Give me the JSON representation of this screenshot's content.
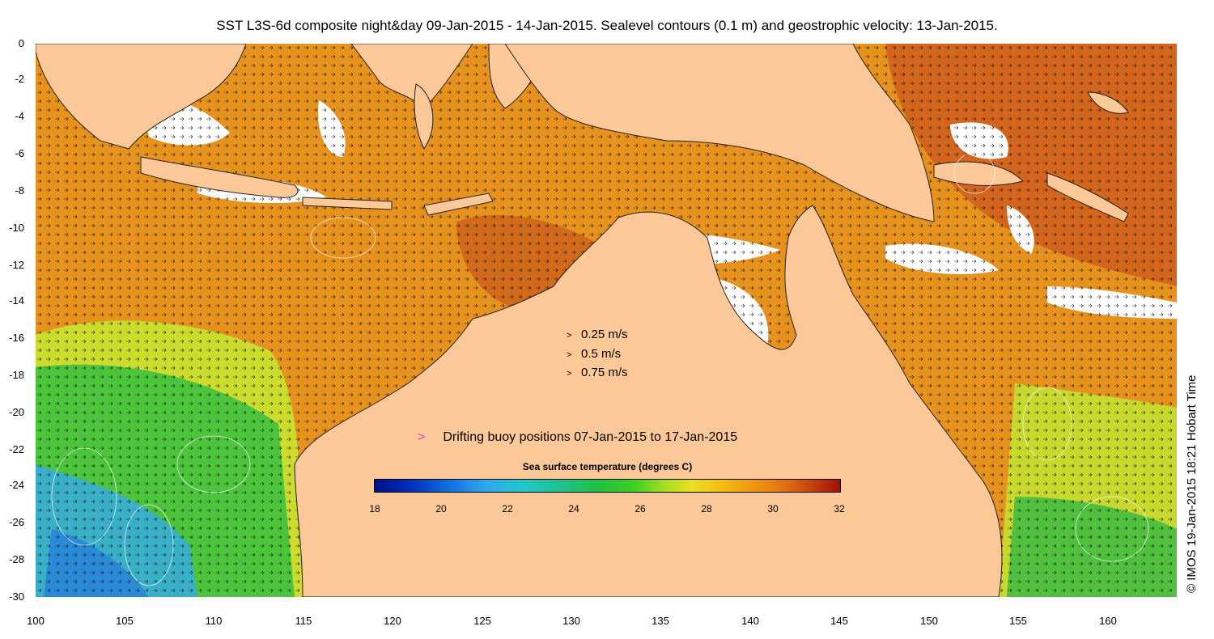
{
  "title": "SST L3S-6d composite night&day 09-Jan-2015 - 14-Jan-2015. Sealevel contours (0.1 m) and geostrophic velocity: 13-Jan-2015.",
  "y_ticks": [
    "0",
    "-2",
    "-4",
    "-6",
    "-8",
    "-10",
    "-12",
    "-14",
    "-16",
    "-18",
    "-20",
    "-22",
    "-24",
    "-26",
    "-28",
    "-30"
  ],
  "x_ticks": [
    "100",
    "105",
    "110",
    "115",
    "120",
    "125",
    "130",
    "135",
    "140",
    "145",
    "150",
    "155",
    "160"
  ],
  "velocity_legend": [
    {
      "label": "0.25 m/s",
      "glyph": ">"
    },
    {
      "label": "0.5 m/s",
      "glyph": ">"
    },
    {
      "label": "0.75 m/s",
      "glyph": ">"
    }
  ],
  "buoy_legend": {
    "glyph": ">",
    "label": "Drifting buoy positions 07-Jan-2015 to 17-Jan-2015",
    "color": "#e040e0"
  },
  "colorbar": {
    "title": "Sea surface temperature (degrees C)",
    "ticks": [
      "18",
      "20",
      "22",
      "24",
      "26",
      "28",
      "30",
      "32"
    ],
    "range": [
      18,
      32
    ]
  },
  "credit": "© IMOS 19-Jan-2015 18:21 Hobart Time",
  "colors": {
    "land": "#fdc898",
    "ocean_warm": "#e68a1e",
    "ocean_hot": "#c8561a",
    "ocean_mid": "#f0b020",
    "ocean_cool": "#5cc840",
    "ocean_cold": "#30a0e0",
    "cloud": "#ffffff"
  }
}
